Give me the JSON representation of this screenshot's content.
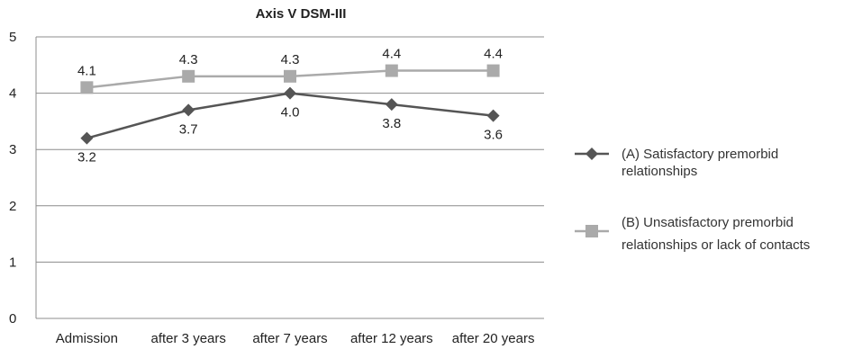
{
  "chart_data": {
    "type": "line",
    "title": "Axis V DSM-III",
    "xlabel": "",
    "ylabel": "",
    "categories": [
      "Admission",
      "after 3 years",
      "after 7 years",
      "after 12 years",
      "after 20 years"
    ],
    "ylim": [
      0,
      5
    ],
    "yticks": [
      "0",
      "1",
      "2",
      "3",
      "4",
      "5"
    ],
    "grid": true,
    "legend_position": "right",
    "series": [
      {
        "name_lines": [
          "(A) Satisfactory premorbid",
          "relationships"
        ],
        "values": [
          3.2,
          3.7,
          4.0,
          3.8,
          3.6
        ],
        "labels": [
          "3.2",
          "3.7",
          "4.0",
          "3.8",
          "3.6"
        ],
        "marker": "diamond",
        "color": "#555555"
      },
      {
        "name_lines": [
          "(B) Unsatisfactory premorbid",
          "relationships or lack of contacts"
        ],
        "values": [
          4.1,
          4.3,
          4.3,
          4.4,
          4.4
        ],
        "labels": [
          "4.1",
          "4.3",
          "4.3",
          "4.4",
          "4.4"
        ],
        "marker": "square",
        "color": "#aaaaaa"
      }
    ]
  }
}
